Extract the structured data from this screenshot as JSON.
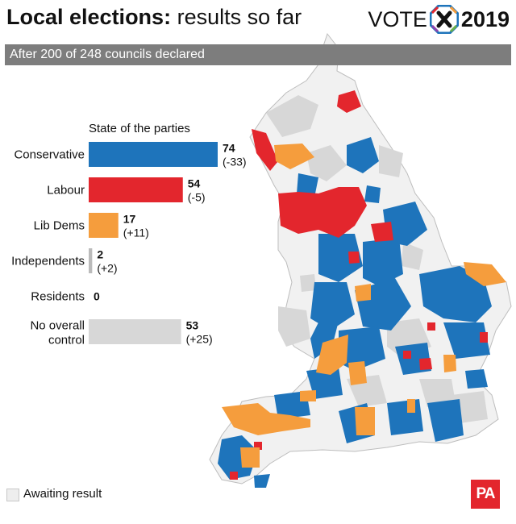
{
  "header": {
    "title_bold": "Local elections:",
    "title_light": "results so far",
    "logo_word": "VOTE",
    "logo_year": "2019",
    "subtitle": "After 200 of 248 councils declared"
  },
  "colors": {
    "conservative": "#1e74bb",
    "labour": "#e3262d",
    "libdem": "#f59d3d",
    "independent": "#bbbbbb",
    "noc": "#d7d7d7",
    "awaiting": "#eeeeee"
  },
  "chart_data": {
    "type": "bar",
    "title": "State of the parties",
    "categories": [
      "Conservative",
      "Labour",
      "Lib Dems",
      "Independents",
      "Residents",
      "No overall control"
    ],
    "values": [
      74,
      54,
      17,
      2,
      0,
      53
    ],
    "changes": [
      "(-33)",
      "(-5)",
      "(+11)",
      "(+2)",
      "",
      "(+25)"
    ],
    "colors": [
      "#1e74bb",
      "#e3262d",
      "#f59d3d",
      "#bbbbbb",
      "#bbbbbb",
      "#d7d7d7"
    ],
    "xlim": [
      0,
      74
    ]
  },
  "legend": {
    "awaiting_label": "Awaiting result"
  },
  "logo": {
    "pa": "PA"
  }
}
